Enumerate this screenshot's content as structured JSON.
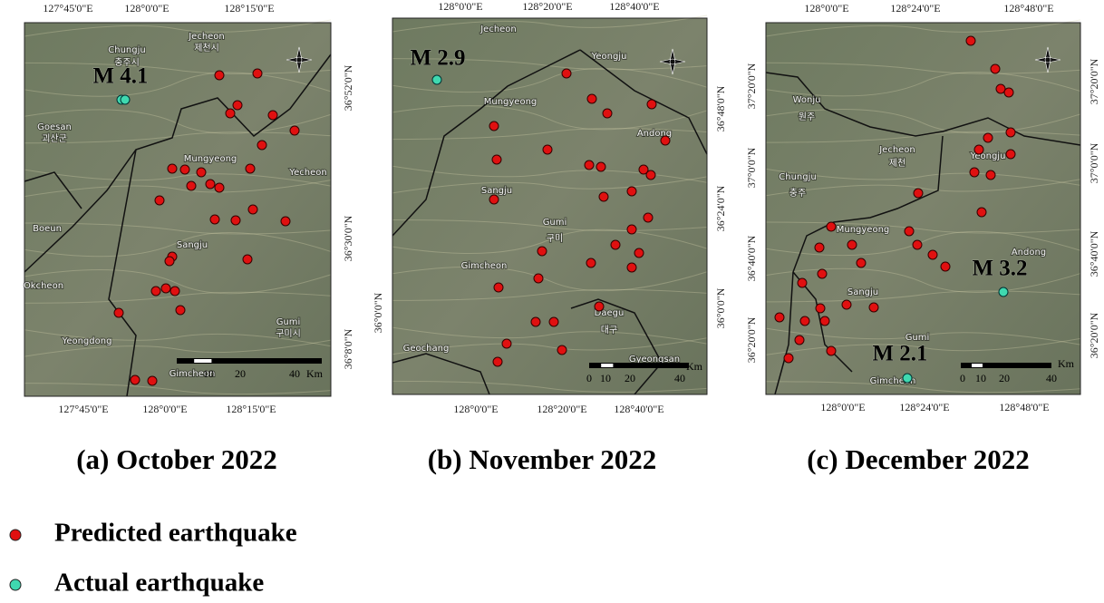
{
  "panels": [
    {
      "caption": "(a) October 2022",
      "top_labels": [
        "127°45'0\"E",
        "128°0'0\"E",
        "128°15'0\"E"
      ],
      "bottom_labels": [
        "127°45'0\"E",
        "128°0'0\"E",
        "128°15'0\"E"
      ],
      "left_labels": [],
      "right_labels": [
        "36°52'0\"N",
        "36°30'0\"N",
        "36°8'0\"N"
      ],
      "magnitude_labels": [
        "M 4.1"
      ],
      "place_names": [
        "Chungju",
        "충주시",
        "Jecheon",
        "제천시",
        "Goesan",
        "괴산군",
        "Mungyeong",
        "Yecheon",
        "Sangju",
        "Gumi",
        "구미시",
        "Okcheon",
        "Yeongdong",
        "Boeun",
        "Gimcheon"
      ],
      "scale_bar": {
        "ticks": [
          "10",
          "20",
          "40"
        ],
        "unit": "Km"
      }
    },
    {
      "caption": "(b) November 2022",
      "top_labels": [
        "128°0'0\"E",
        "128°20'0\"E",
        "128°40'0\"E"
      ],
      "bottom_labels": [
        "128°0'0\"E",
        "128°20'0\"E",
        "128°40'0\"E"
      ],
      "left_labels": [
        "36°0'0\"N"
      ],
      "right_labels": [
        "36°48'0\"N",
        "36°24'0\"N",
        "36°0'0\"N"
      ],
      "magnitude_labels": [
        "M 2.9"
      ],
      "place_names": [
        "Jecheon",
        "Yeongju",
        "Mungyeong",
        "Andong",
        "Sangju",
        "Gumi",
        "구미",
        "Gimcheon",
        "Daegu",
        "대구",
        "Geochang",
        "Gyeongsan"
      ],
      "scale_bar": {
        "ticks": [
          "0",
          "10",
          "20",
          "40"
        ],
        "unit": "Km"
      }
    },
    {
      "caption": "(c) December 2022",
      "top_labels": [
        "128°0'0\"E",
        "128°24'0\"E",
        "128°48'0\"E"
      ],
      "bottom_labels": [
        "128°0'0\"E",
        "128°24'0\"E",
        "128°48'0\"E"
      ],
      "left_labels": [
        "37°20'0\"N",
        "37°0'0\"N",
        "36°40'0\"N",
        "36°20'0\"N"
      ],
      "right_labels": [
        "37°20'0\"N",
        "37°0'0\"N",
        "36°40'0\"N",
        "36°20'0\"N"
      ],
      "magnitude_labels": [
        "M 3.2",
        "M 2.1"
      ],
      "place_names": [
        "Wonju",
        "원주",
        "Chungju",
        "충주",
        "Jecheon",
        "제천",
        "Mungyeong",
        "Yeongju",
        "Andong",
        "Sangju",
        "Gumi",
        "Gimcheon"
      ],
      "scale_bar": {
        "ticks": [
          "0",
          "10",
          "20",
          "40"
        ],
        "unit": "Km"
      }
    }
  ],
  "legend": [
    {
      "label": "Predicted earthquake",
      "color": "#e01010"
    },
    {
      "label": "Actual earthquake",
      "color": "#3fd9b0"
    }
  ]
}
